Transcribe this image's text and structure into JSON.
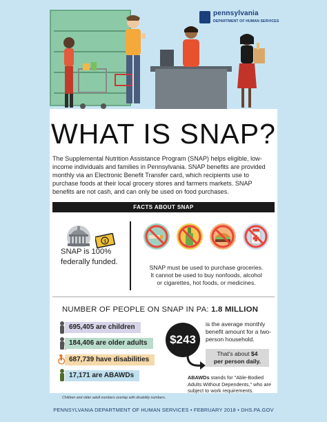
{
  "logo": {
    "name": "pennsylvania",
    "dept": "DEPARTMENT OF HUMAN SERVICES"
  },
  "title": "WHAT IS SNAP?",
  "intro": "The Supplemental Nutrition Assistance Program (SNAP) helps eligible, low-income individuals and families in Pennsylvania. SNAP benefits are provided monthly via an Electronic Benefit Transfer card, which recipients use to purchase foods at their local grocery stores and farmers markets. SNAP benefits are not cash, and can only be used on food purchases.",
  "facts_header": "FACTS ABOUT SNAP",
  "fact_funding": "SNAP is 100% federally funded.",
  "fact_funding_line1": "SNAP is 100%",
  "fact_funding_line2": "federally funded.",
  "fact_groceries_line1": "SNAP must be used to purchase groceries.",
  "fact_groceries_line2": "It cannot be used to buy nonfoods, alcohol",
  "fact_groceries_line3": "or cigarettes, hot foods, or medicines.",
  "people_label": "NUMBER OF PEOPLE ON SNAP IN PA:",
  "people_total": "1.8 MILLION",
  "stats": [
    {
      "value": "695,405",
      "label": "are children",
      "color": "#d7d3e8"
    },
    {
      "value": "184,406",
      "label": "are older adults",
      "color": "#b9dccb"
    },
    {
      "value": "687,739",
      "label": "have disabilities",
      "color": "#f6d9a9"
    },
    {
      "value": "17,171",
      "label": "are ABAWDs",
      "color": "#bfe0ef"
    }
  ],
  "benefit_amount": "$243",
  "benefit_text": "is the average monthly benefit amount for a two-person household.",
  "per_day_line1": "That's about",
  "per_day_value": "$4",
  "per_day_line2": "per person daily.",
  "abawd_term": "ABAWDs",
  "abawd_text": " stands for \"Able-Bodied Adults Without Dependents,\" who are subject to work requirements.",
  "footnote": "Children and older adult numbers overlap with disability numbers.",
  "footer": "PENNSYLVANIA DEPARTMENT OF HUMAN SERVICES • FEBRUARY 2018 • DHS.PA.GOV",
  "icons": [
    "capitol-building-icon",
    "money-bill-icon",
    "no-cigarettes-icon",
    "no-alcohol-icon",
    "no-hot-food-icon",
    "no-medicine-icon",
    "curved-arrow-icon"
  ]
}
